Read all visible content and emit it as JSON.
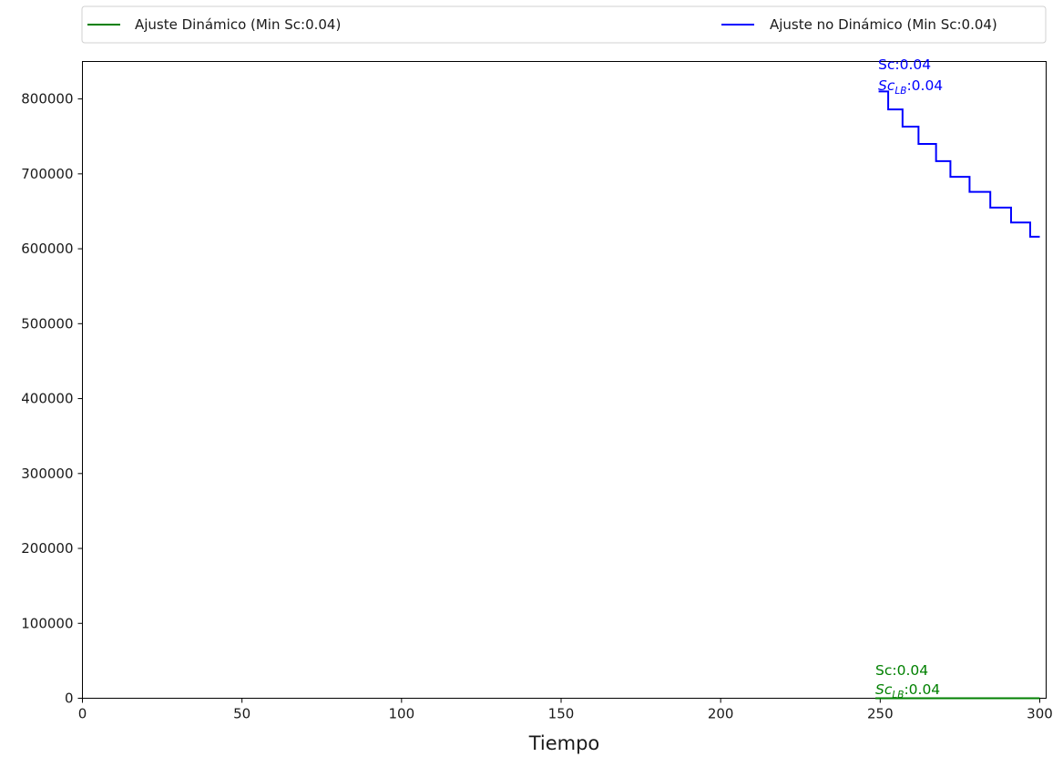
{
  "chart_data": {
    "type": "line",
    "title": "",
    "xlabel": "Tiempo",
    "ylabel": "",
    "xlim": [
      0,
      302
    ],
    "ylim": [
      0,
      850000
    ],
    "xticks": [
      0,
      50,
      100,
      150,
      200,
      250,
      300
    ],
    "yticks": [
      0,
      100000,
      200000,
      300000,
      400000,
      500000,
      600000,
      700000,
      800000
    ],
    "xtick_labels": [
      "0",
      "50",
      "100",
      "150",
      "200",
      "250",
      "300"
    ],
    "ytick_labels": [
      "0",
      "100000",
      "200000",
      "300000",
      "400000",
      "500000",
      "600000",
      "700000",
      "800000"
    ],
    "legend_position": "top, outside plot",
    "grid": false,
    "series": [
      {
        "name": "Ajuste Dinámico (Min Sc:0.04)",
        "color": "#008000",
        "step": true,
        "x": [
          248.5,
          300
        ],
        "y": [
          0,
          0
        ],
        "annotation": {
          "sc": "Sc:0.04",
          "sclb_prefix": "Sc",
          "sclb_sub": "LB",
          "sclb_value": ":0.04"
        }
      },
      {
        "name": "Ajuste no Dinámico (Min Sc:0.04)",
        "color": "#0000ff",
        "step": true,
        "x": [
          249.5,
          252.5,
          257,
          262,
          267.5,
          272,
          278,
          284.5,
          291,
          297,
          300
        ],
        "y": [
          810000,
          786000,
          763000,
          740000,
          717000,
          696000,
          676000,
          655000,
          635000,
          616000,
          616000
        ],
        "annotation": {
          "sc": "Sc:0.04",
          "sclb_prefix": "Sc",
          "sclb_sub": "LB",
          "sclb_value": ":0.04"
        }
      }
    ]
  }
}
